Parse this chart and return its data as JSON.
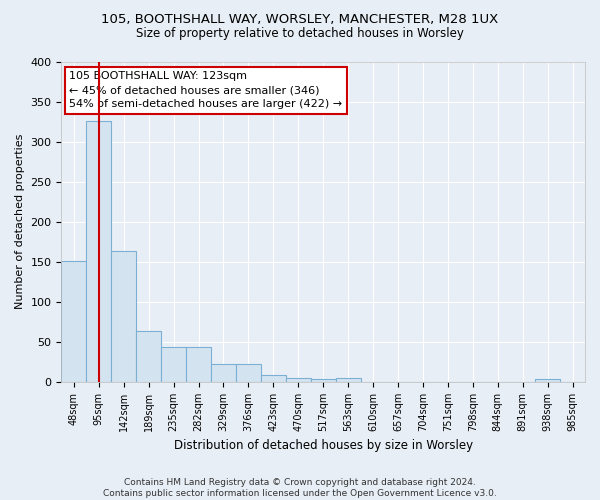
{
  "title1": "105, BOOTHSHALL WAY, WORSLEY, MANCHESTER, M28 1UX",
  "title2": "Size of property relative to detached houses in Worsley",
  "xlabel": "Distribution of detached houses by size in Worsley",
  "ylabel": "Number of detached properties",
  "categories": [
    "48sqm",
    "95sqm",
    "142sqm",
    "189sqm",
    "235sqm",
    "282sqm",
    "329sqm",
    "376sqm",
    "423sqm",
    "470sqm",
    "517sqm",
    "563sqm",
    "610sqm",
    "657sqm",
    "704sqm",
    "751sqm",
    "798sqm",
    "844sqm",
    "891sqm",
    "938sqm",
    "985sqm"
  ],
  "bar_heights": [
    151,
    326,
    164,
    64,
    44,
    44,
    22,
    22,
    9,
    5,
    4,
    5,
    0,
    0,
    0,
    0,
    0,
    0,
    0,
    4,
    0
  ],
  "bar_color": "#d4e3f0",
  "bar_edge_color": "#7bafd4",
  "vline_color": "#cc0000",
  "vline_x": 1,
  "annotation_line1": "105 BOOTHSHALL WAY: 123sqm",
  "annotation_line2": "← 45% of detached houses are smaller (346)",
  "annotation_line3": "54% of semi-detached houses are larger (422) →",
  "annotation_box_facecolor": "white",
  "annotation_box_edgecolor": "#cc0000",
  "background_color": "#e8eef5",
  "plot_bg_color": "#e8eef5",
  "grid_color": "#ffffff",
  "ylim": [
    0,
    400
  ],
  "yticks": [
    0,
    50,
    100,
    150,
    200,
    250,
    300,
    350,
    400
  ],
  "footer_text": "Contains HM Land Registry data © Crown copyright and database right 2024.\nContains public sector information licensed under the Open Government Licence v3.0."
}
